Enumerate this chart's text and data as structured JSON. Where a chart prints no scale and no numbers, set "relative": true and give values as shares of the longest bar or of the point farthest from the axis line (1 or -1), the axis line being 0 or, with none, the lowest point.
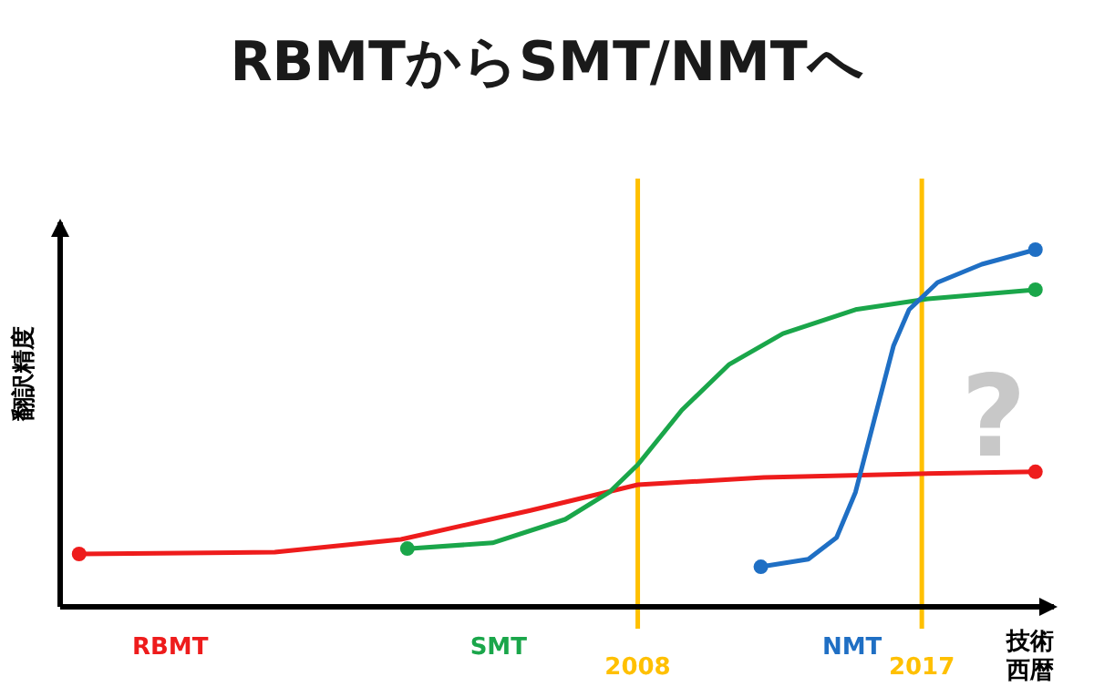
{
  "chart_data": {
    "type": "line",
    "title": "RBMTからSMT/NMTへ",
    "xlabel": "技術西暦",
    "ylabel": "翻訳精度",
    "relative": true,
    "xlim": [
      1989.7,
      2021.3
    ],
    "xticks": [
      2008,
      2017
    ],
    "line_style": "solid",
    "series": [
      {
        "name": "RBMT",
        "color": "#ee1c1c",
        "x": [
          1990.3,
          1996.5,
          2000.5,
          2004.6,
          2008,
          2012.0,
          2016.6,
          2020.6
        ],
        "values": [
          0.148,
          0.153,
          0.189,
          0.27,
          0.342,
          0.362,
          0.372,
          0.378
        ]
      },
      {
        "name": "SMT",
        "color": "#1aa64a",
        "x": [
          2000.7,
          2003.4,
          2005.7,
          2007.1,
          2008,
          2009.4,
          2010.9,
          2012.6,
          2014.9,
          2017.2,
          2020.6
        ],
        "values": [
          0.163,
          0.179,
          0.245,
          0.321,
          0.398,
          0.551,
          0.679,
          0.765,
          0.832,
          0.862,
          0.888
        ]
      },
      {
        "name": "NMT",
        "color": "#1f6fc4",
        "x": [
          2011.9,
          2013.4,
          2014.3,
          2014.9,
          2015.5,
          2016.1,
          2016.6,
          2017.5,
          2018.9,
          2020.6
        ],
        "values": [
          0.112,
          0.133,
          0.194,
          0.321,
          0.526,
          0.73,
          0.832,
          0.908,
          0.959,
          1
        ]
      }
    ],
    "ref_lines": [
      {
        "axis": "x",
        "value": 2008,
        "color": "#ffc000"
      },
      {
        "axis": "x",
        "value": 2017,
        "color": "#ffc000"
      }
    ],
    "annotations": [
      "?"
    ]
  }
}
